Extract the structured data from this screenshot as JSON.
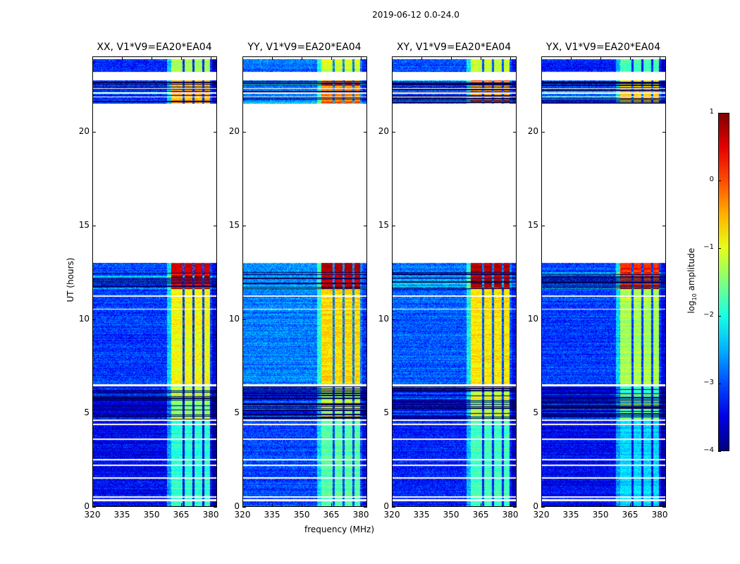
{
  "suptitle": "2019-06-12 0.0-24.0",
  "chart_data": {
    "type": "heatmap",
    "title": "2019-06-12 0.0-24.0",
    "xlabel": "frequency (MHz)",
    "ylabel": "UT (hours)",
    "xlim": [
      320,
      383.2
    ],
    "ylim": [
      0,
      24
    ],
    "xticks": [
      "320",
      "335",
      "350",
      "365",
      "380"
    ],
    "yticks": [
      "0",
      "5",
      "10",
      "15",
      "20"
    ],
    "colormap": "jet",
    "colorbar": {
      "label": "log10 amplitude",
      "label_main": "log",
      "label_sub": "10",
      "label_rest": " amplitude",
      "range": [
        -4,
        1
      ],
      "ticks": [
        "1",
        "0",
        "−1",
        "−2",
        "−3",
        "−4"
      ]
    },
    "band_mhz": [
      360,
      380
    ],
    "band_gaps_mhz": [
      366.5,
      371.5,
      376.5
    ],
    "flagged_hours": [
      [
        13.0,
        21.5
      ],
      [
        22.75,
        23.2
      ],
      [
        0.28,
        0.36
      ],
      [
        0.45,
        0.52
      ],
      [
        1.48,
        1.56
      ],
      [
        2.15,
        2.22
      ],
      [
        2.45,
        2.52
      ],
      [
        3.55,
        3.62
      ],
      [
        4.35,
        4.42
      ],
      [
        4.55,
        4.62
      ],
      [
        6.42,
        6.5
      ],
      [
        10.5,
        10.56
      ],
      [
        11.2,
        11.25
      ],
      [
        21.85,
        21.9
      ],
      [
        22.05,
        22.1
      ],
      [
        22.3,
        22.36
      ]
    ],
    "segments": [
      {
        "hours": [
          0,
          4.6
        ],
        "base": -3.4,
        "band": -2.0,
        "striped": false
      },
      {
        "hours": [
          4.6,
          6.4
        ],
        "base": -3.6,
        "band": -1.6,
        "striped": true
      },
      {
        "hours": [
          6.5,
          11.6
        ],
        "base": -3.1,
        "band": -1.0,
        "striped": false
      },
      {
        "hours": [
          11.6,
          12.5
        ],
        "base": -3.0,
        "band": 0.3,
        "striped": true
      },
      {
        "hours": [
          12.5,
          13.0
        ],
        "base": -3.0,
        "band": 0.5,
        "striped": false
      },
      {
        "hours": [
          21.5,
          22.75
        ],
        "base": -3.1,
        "band": -0.6,
        "striped": true
      },
      {
        "hours": [
          23.2,
          23.9
        ],
        "base": -3.2,
        "band": -1.4,
        "striped": false
      }
    ],
    "panels": [
      {
        "title": "XX, V1*V9=EA20*EA04",
        "base_offset": 0.0,
        "band_offset": 0.1
      },
      {
        "title": "YY, V1*V9=EA20*EA04",
        "base_offset": 0.35,
        "band_offset": 0.3
      },
      {
        "title": "XY, V1*V9=EA20*EA04",
        "base_offset": 0.15,
        "band_offset": 0.2
      },
      {
        "title": "YX, V1*V9=EA20*EA04",
        "base_offset": 0.0,
        "band_offset": -0.3
      }
    ]
  }
}
